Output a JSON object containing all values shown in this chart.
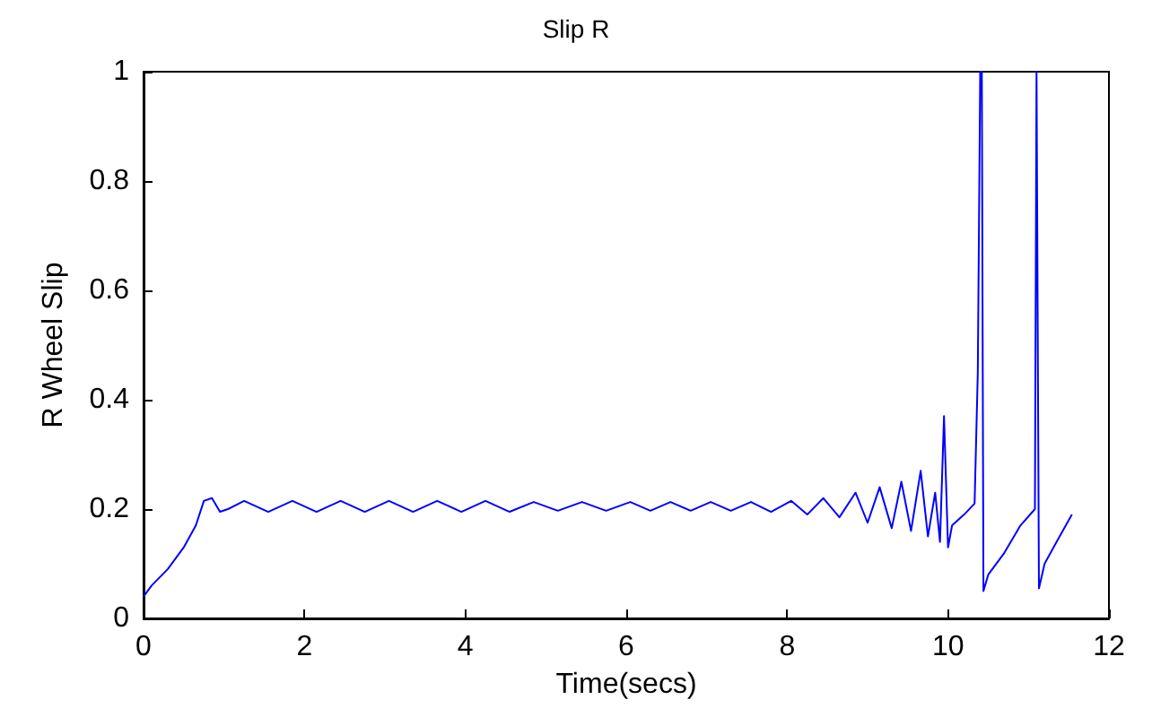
{
  "chart_data": {
    "type": "line",
    "title": "Slip R",
    "xlabel": "Time(secs)",
    "ylabel": "R Wheel Slip",
    "x": [
      0,
      0.1,
      0.3,
      0.5,
      0.65,
      0.75,
      0.85,
      0.95,
      1.05,
      1.25,
      1.55,
      1.85,
      2.15,
      2.45,
      2.75,
      3.05,
      3.35,
      3.65,
      3.95,
      4.25,
      4.55,
      4.85,
      5.15,
      5.45,
      5.75,
      6.05,
      6.3,
      6.55,
      6.8,
      7.05,
      7.3,
      7.55,
      7.8,
      8.05,
      8.25,
      8.45,
      8.65,
      8.85,
      9.0,
      9.15,
      9.3,
      9.42,
      9.54,
      9.66,
      9.75,
      9.84,
      9.9,
      9.95,
      10.0,
      10.05,
      10.2,
      10.33,
      10.37,
      10.4,
      10.42,
      10.44,
      10.5,
      10.7,
      10.9,
      11.08,
      11.1,
      11.11,
      11.13,
      11.2,
      11.35,
      11.54
    ],
    "series": [
      {
        "color": "#0000ff",
        "values": [
          0.04,
          0.06,
          0.09,
          0.13,
          0.17,
          0.215,
          0.22,
          0.195,
          0.2,
          0.215,
          0.195,
          0.215,
          0.195,
          0.215,
          0.195,
          0.215,
          0.195,
          0.215,
          0.195,
          0.215,
          0.195,
          0.213,
          0.197,
          0.213,
          0.197,
          0.213,
          0.197,
          0.213,
          0.197,
          0.213,
          0.197,
          0.213,
          0.195,
          0.215,
          0.19,
          0.22,
          0.185,
          0.23,
          0.175,
          0.24,
          0.165,
          0.25,
          0.16,
          0.27,
          0.15,
          0.23,
          0.14,
          0.37,
          0.13,
          0.17,
          0.19,
          0.21,
          0.45,
          1,
          1,
          0.05,
          0.08,
          0.12,
          0.17,
          0.2,
          1,
          1,
          0.055,
          0.1,
          0.14,
          0.19
        ]
      }
    ],
    "xlim": [
      0,
      12
    ],
    "xticks": [
      0,
      2,
      4,
      6,
      8,
      10,
      12
    ],
    "ylim": [
      0,
      1
    ],
    "yticks": [
      0,
      0.2,
      0.4,
      0.6,
      0.8,
      1
    ],
    "grid": false,
    "marker": "none",
    "line_style": "solid"
  }
}
